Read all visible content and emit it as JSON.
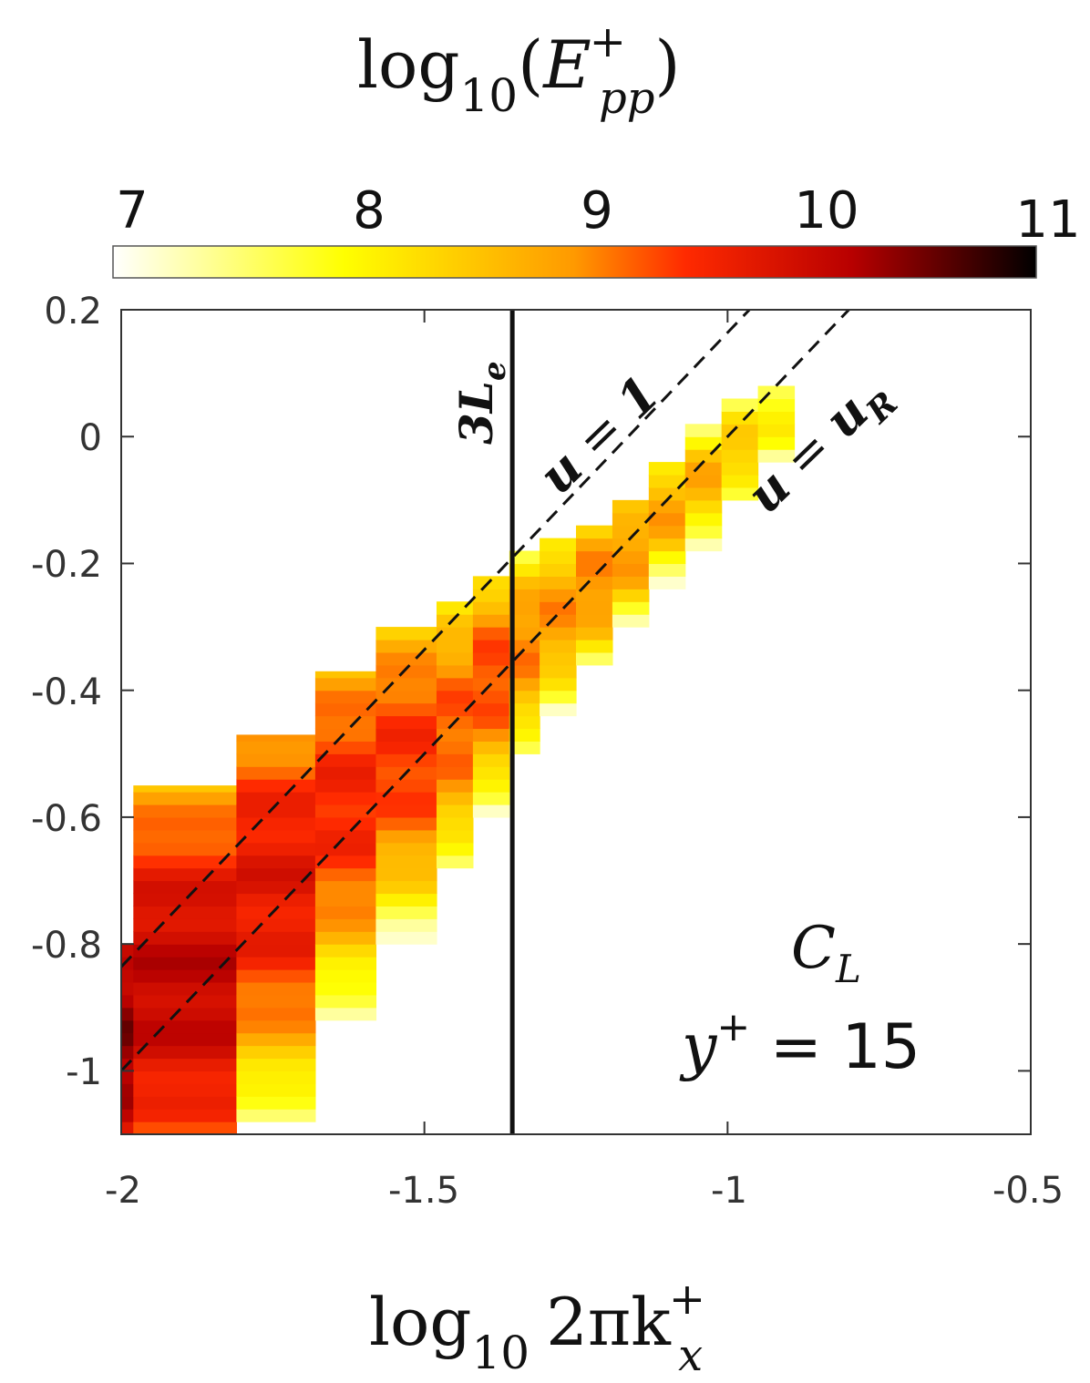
{
  "chart_data": {
    "type": "heatmap",
    "colorbar": {
      "title": "log10(E_pp^+)",
      "title_base": "log",
      "title_sub": "10",
      "title_var": "E",
      "title_var_sup": "+",
      "title_var_sub": "pp",
      "ticks": [
        "7",
        "8",
        "9",
        "10",
        "11"
      ],
      "range": [
        7,
        11
      ],
      "colormap": "hot (reversed)",
      "placement": "top"
    },
    "xlabel": "log10 2πk_x^+",
    "xlabel_parts": {
      "base": "log",
      "sub": "10",
      "body": "2πk",
      "var_sup": "+",
      "var_sub": "x"
    },
    "xlim": [
      -2,
      -0.5
    ],
    "x_ticks": [
      "-2",
      "-1.5",
      "-1",
      "-0.5"
    ],
    "ylim": [
      -1.1,
      0.2
    ],
    "y_ticks": [
      "0.2",
      "0",
      "-0.2",
      "-0.4",
      "-0.6",
      "-0.8",
      "-1"
    ],
    "grid": false,
    "vertical_line": {
      "x": -1.355,
      "label": "3L",
      "label_sub": "e"
    },
    "dashed_lines": [
      {
        "label": "u = 1",
        "label_var": "u",
        "label_val": "1",
        "points": [
          [
            -2,
            -0.836
          ],
          [
            -0.5,
            0.664
          ]
        ]
      },
      {
        "label": "u = u_R",
        "label_var": "u",
        "label_val": "u",
        "label_val_sub": "R",
        "points": [
          [
            -2,
            -1.0
          ],
          [
            -0.5,
            0.5
          ]
        ]
      }
    ],
    "panel_label": {
      "case": "C",
      "case_sub": "L",
      "yplus_var": "y",
      "yplus_sup": "+",
      "yplus_eq": " = 15"
    },
    "columns": [
      {
        "x0": -2.0,
        "x1": -1.98,
        "y0": -1.1,
        "y1": -0.8,
        "peak_y": -0.95,
        "peak": 10.4,
        "spread": 0.3
      },
      {
        "x0": -1.98,
        "x1": -1.81,
        "y0": -1.1,
        "y1": -0.55,
        "peak_y": -0.86,
        "peak": 10.1,
        "spread": 0.4
      },
      {
        "x0": -1.81,
        "x1": -1.68,
        "y0": -1.1,
        "y1": -0.47,
        "peak_y": -0.7,
        "peak": 9.8,
        "spread": 0.38
      },
      {
        "x0": -1.68,
        "x1": -1.58,
        "y0": -1.1,
        "y1": -0.37,
        "peak_y": -0.58,
        "peak": 9.6,
        "spread": 0.34
      },
      {
        "x0": -1.58,
        "x1": -1.48,
        "y0": -1.04,
        "y1": -0.3,
        "peak_y": -0.5,
        "peak": 9.5,
        "spread": 0.3
      },
      {
        "x0": -1.48,
        "x1": -1.42,
        "y0": -0.88,
        "y1": -0.26,
        "peak_y": -0.45,
        "peak": 9.3,
        "spread": 0.26
      },
      {
        "x0": -1.42,
        "x1": -1.36,
        "y0": -0.76,
        "y1": -0.22,
        "peak_y": -0.38,
        "peak": 9.4,
        "spread": 0.22
      },
      {
        "x0": -1.36,
        "x1": -1.31,
        "y0": -0.64,
        "y1": -0.18,
        "peak_y": -0.33,
        "peak": 9.1,
        "spread": 0.2
      },
      {
        "x0": -1.31,
        "x1": -1.25,
        "y0": -0.6,
        "y1": -0.16,
        "peak_y": -0.28,
        "peak": 9.0,
        "spread": 0.18
      },
      {
        "x0": -1.25,
        "x1": -1.19,
        "y0": -0.46,
        "y1": -0.14,
        "peak_y": -0.23,
        "peak": 9.1,
        "spread": 0.16
      },
      {
        "x0": -1.19,
        "x1": -1.13,
        "y0": -0.38,
        "y1": -0.1,
        "peak_y": -0.18,
        "peak": 9.0,
        "spread": 0.14
      },
      {
        "x0": -1.13,
        "x1": -1.07,
        "y0": -0.3,
        "y1": -0.04,
        "peak_y": -0.12,
        "peak": 8.9,
        "spread": 0.13
      },
      {
        "x0": -1.07,
        "x1": -1.01,
        "y0": -0.24,
        "y1": 0.02,
        "peak_y": -0.07,
        "peak": 8.8,
        "spread": 0.12
      },
      {
        "x0": -1.01,
        "x1": -0.95,
        "y0": -0.18,
        "y1": 0.06,
        "peak_y": -0.02,
        "peak": 8.6,
        "spread": 0.11
      },
      {
        "x0": -0.95,
        "x1": -0.89,
        "y0": -0.1,
        "y1": 0.08,
        "peak_y": 0.03,
        "peak": 8.2,
        "spread": 0.1
      }
    ]
  }
}
